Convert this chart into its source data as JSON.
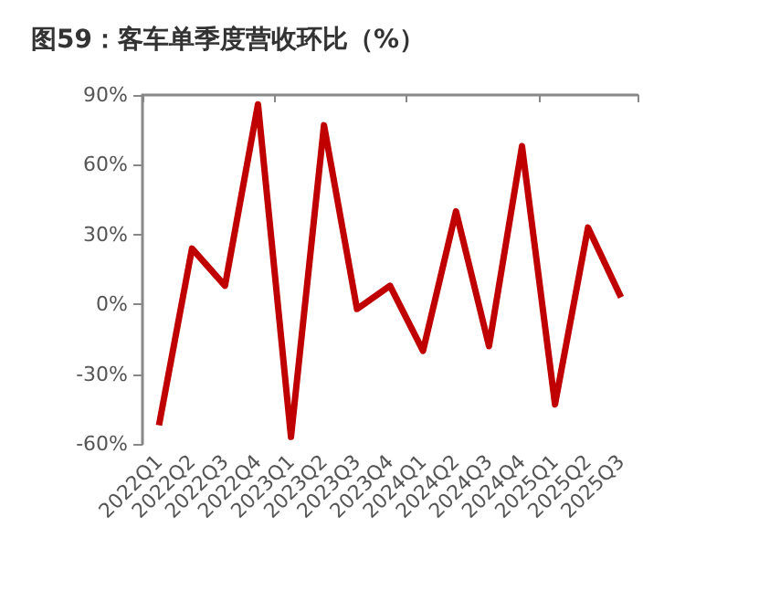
{
  "chart_data": {
    "type": "line",
    "title": "图59：客车单季度营收环比（%）",
    "categories": [
      "2022Q1",
      "2022Q2",
      "2022Q3",
      "2022Q4",
      "2023Q1",
      "2023Q2",
      "2023Q3",
      "2023Q4",
      "2024Q1",
      "2024Q2",
      "2024Q3",
      "2024Q4",
      "2025Q1",
      "2025Q2",
      "2025Q3"
    ],
    "series": [
      {
        "color": "#c00000",
        "values": [
          -52,
          24,
          8,
          86,
          -57,
          77,
          -2,
          8,
          -20,
          40,
          -18,
          68,
          -43,
          33,
          3
        ]
      }
    ],
    "ylim": [
      -60,
      90
    ],
    "yticks": [
      {
        "value": -60,
        "label": "-60%"
      },
      {
        "value": -30,
        "label": "-30%"
      },
      {
        "value": 0,
        "label": "0%"
      },
      {
        "value": 30,
        "label": "30%"
      },
      {
        "value": 60,
        "label": "60%"
      },
      {
        "value": 90,
        "label": "90%"
      }
    ],
    "grid": false,
    "marker": "none",
    "line_style": "solid"
  }
}
